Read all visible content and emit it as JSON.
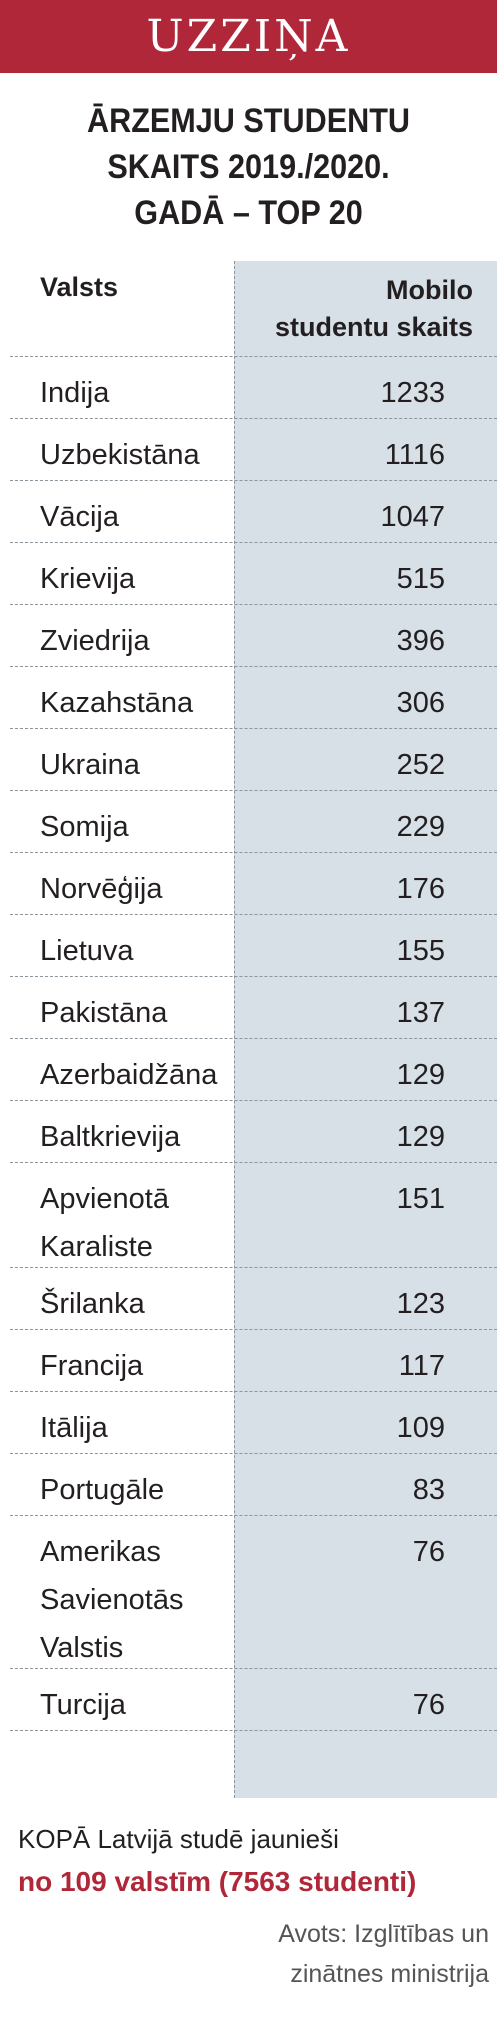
{
  "header": {
    "banner": "UZZIŅA"
  },
  "title": {
    "line1": "ĀRZEMJU STUDENTU",
    "line2": "SKAITS 2019./2020.",
    "line3": "GADĀ – TOP 20"
  },
  "table": {
    "col_country": "Valsts",
    "col_count_line1": "Mobilo",
    "col_count_line2": "studentu skaits",
    "rows": [
      {
        "country": [
          "Indija"
        ],
        "count": "1233"
      },
      {
        "country": [
          "Uzbekistāna"
        ],
        "count": "1116"
      },
      {
        "country": [
          "Vācija"
        ],
        "count": "1047"
      },
      {
        "country": [
          "Krievija"
        ],
        "count": "515"
      },
      {
        "country": [
          "Zviedrija"
        ],
        "count": "396"
      },
      {
        "country": [
          "Kazahstāna"
        ],
        "count": "306"
      },
      {
        "country": [
          "Ukraina"
        ],
        "count": "252"
      },
      {
        "country": [
          "Somija"
        ],
        "count": "229"
      },
      {
        "country": [
          "Norvēģija"
        ],
        "count": "176"
      },
      {
        "country": [
          "Lietuva"
        ],
        "count": "155"
      },
      {
        "country": [
          "Pakistāna"
        ],
        "count": "137"
      },
      {
        "country": [
          "Azerbaidžāna"
        ],
        "count": "129"
      },
      {
        "country": [
          "Baltkrievija"
        ],
        "count": "129"
      },
      {
        "country": [
          "Apvienotā",
          "Karaliste"
        ],
        "count": "151"
      },
      {
        "country": [
          "Šrilanka"
        ],
        "count": "123"
      },
      {
        "country": [
          "Francija"
        ],
        "count": "117"
      },
      {
        "country": [
          "Itālija"
        ],
        "count": "109"
      },
      {
        "country": [
          "Portugāle"
        ],
        "count": "83"
      },
      {
        "country": [
          "Amerikas",
          "Savienotās",
          "Valstis"
        ],
        "count": "76"
      },
      {
        "country": [
          "Turcija"
        ],
        "count": "76"
      }
    ]
  },
  "footer": {
    "total_line": "KOPĀ Latvijā studē jaunieši",
    "total_highlight": "no 109 valstīm (7563 studenti)",
    "source_line1": "Avots: Izglītības un",
    "source_line2": "zinātnes ministrija"
  },
  "colors": {
    "accent": "#b02739",
    "column_shade": "#d7e0e7",
    "text": "#231f20"
  }
}
